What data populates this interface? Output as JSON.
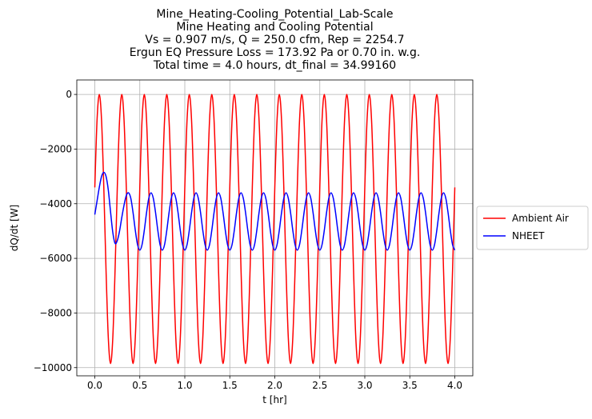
{
  "chart_data": {
    "type": "line",
    "title": [
      "Mine_Heating-Cooling_Potential_Lab-Scale",
      "Mine Heating and Cooling Potential",
      "Vs = 0.907 m/s, Q = 250.0 cfm, Rep = 2254.7",
      "Ergun EQ Pressure Loss = 173.92 Pa or 0.70 in. w.g.",
      "Total time = 4.0 hours, dt_final = 34.99160"
    ],
    "xlabel": "t [hr]",
    "ylabel": "dQ/dt [W]",
    "xlim": [
      -0.2,
      4.2
    ],
    "ylim": [
      -10300,
      530
    ],
    "xticks": [
      {
        "value": 0,
        "label": "0.0"
      },
      {
        "value": 0.5,
        "label": "0.5"
      },
      {
        "value": 1,
        "label": "1.0"
      },
      {
        "value": 1.5,
        "label": "1.5"
      },
      {
        "value": 2,
        "label": "2.0"
      },
      {
        "value": 2.5,
        "label": "2.5"
      },
      {
        "value": 3,
        "label": "3.0"
      },
      {
        "value": 3.5,
        "label": "3.5"
      },
      {
        "value": 4,
        "label": "4.0"
      }
    ],
    "yticks": [
      {
        "value": -10000,
        "label": "−10000"
      },
      {
        "value": -8000,
        "label": "−8000"
      },
      {
        "value": -6000,
        "label": "−6000"
      },
      {
        "value": -4000,
        "label": "−4000"
      },
      {
        "value": -2000,
        "label": "−2000"
      },
      0
    ],
    "grid": true,
    "legend": "outside right",
    "x": [
      0,
      0.025,
      0.05,
      0.075,
      0.1,
      0.125,
      0.15,
      0.175,
      0.2,
      0.225,
      0.25,
      0.275,
      0.3,
      0.325,
      0.35,
      0.375,
      0.4,
      0.425,
      0.45,
      0.475,
      0.5,
      0.525,
      0.55,
      0.575,
      0.6,
      0.625,
      0.65,
      0.675,
      0.7,
      0.725,
      0.75,
      0.775,
      0.8,
      0.825,
      0.85,
      0.875,
      0.9,
      0.925,
      0.95,
      0.975,
      1,
      1.025,
      1.05,
      1.075,
      1.1,
      1.125,
      1.15,
      1.175,
      1.2,
      1.225,
      1.25,
      1.275,
      1.3,
      1.325,
      1.35,
      1.375,
      1.4,
      1.425,
      1.45,
      1.475,
      1.5,
      1.525,
      1.55,
      1.575,
      1.6,
      1.625,
      1.65,
      1.675,
      1.7,
      1.725,
      1.75,
      1.775,
      1.8,
      1.825,
      1.85,
      1.875,
      1.9,
      1.925,
      1.95,
      1.975,
      2,
      2.025,
      2.05,
      2.075,
      2.1,
      2.125,
      2.15,
      2.175,
      2.2,
      2.225,
      2.25,
      2.275,
      2.3,
      2.325,
      2.35,
      2.375,
      2.4,
      2.425,
      2.45,
      2.475,
      2.5,
      2.525,
      2.55,
      2.575,
      2.6,
      2.625,
      2.65,
      2.675,
      2.7,
      2.725,
      2.75,
      2.775,
      2.8,
      2.825,
      2.85,
      2.875,
      2.9,
      2.925,
      2.95,
      2.975,
      3,
      3.025,
      3.05,
      3.075,
      3.1,
      3.125,
      3.15,
      3.175,
      3.2,
      3.225,
      3.25,
      3.275,
      3.3,
      3.325,
      3.35,
      3.375,
      3.4,
      3.425,
      3.45,
      3.475,
      3.5,
      3.525,
      3.55,
      3.575,
      3.6,
      3.625,
      3.65,
      3.675,
      3.7,
      3.725,
      3.75,
      3.775,
      3.8,
      3.825,
      3.85,
      3.875,
      3.9,
      3.925,
      3.95,
      3.975,
      4
    ],
    "series": [
      {
        "name": "Ambient Air",
        "color": "#ff0000",
        "values": [
          -3403,
          -940,
          0,
          -940,
          -3403,
          -6447,
          -8909,
          -9850,
          -8909,
          -6447,
          -3403,
          -940,
          0,
          -940,
          -3403,
          -6447,
          -8909,
          -9850,
          -8909,
          -6447,
          -3403,
          -940,
          0,
          -940,
          -3403,
          -6447,
          -8909,
          -9850,
          -8909,
          -6447,
          -3403,
          -940,
          0,
          -940,
          -3403,
          -6447,
          -8909,
          -9850,
          -8909,
          -6447,
          -3403,
          -940,
          0,
          -940,
          -3403,
          -6447,
          -8909,
          -9850,
          -8909,
          -6447,
          -3403,
          -940,
          0,
          -940,
          -3403,
          -6447,
          -8909,
          -9850,
          -8909,
          -6447,
          -3403,
          -940,
          0,
          -940,
          -3403,
          -6447,
          -8909,
          -9850,
          -8909,
          -6447,
          -3403,
          -940,
          0,
          -940,
          -3403,
          -6447,
          -8909,
          -9850,
          -8909,
          -6447,
          -3403,
          -940,
          0,
          -940,
          -3403,
          -6447,
          -8909,
          -9850,
          -8909,
          -6447,
          -3403,
          -940,
          0,
          -940,
          -3403,
          -6447,
          -8909,
          -9850,
          -8909,
          -6447,
          -3403,
          -940,
          0,
          -940,
          -3403,
          -6447,
          -8909,
          -9850,
          -8909,
          -6447,
          -3403,
          -940,
          0,
          -940,
          -3403,
          -6447,
          -8909,
          -9850,
          -8909,
          -6447,
          -3403,
          -940,
          0,
          -940,
          -3403,
          -6447,
          -8909,
          -9850,
          -8909,
          -6447,
          -3403,
          -940,
          0,
          -940,
          -3403,
          -6447,
          -8909,
          -9850,
          -8909,
          -6447,
          -3403,
          -940,
          0,
          -940,
          -3403,
          -6447,
          -8909,
          -9850,
          -8909,
          -6447,
          -3403,
          -940,
          0,
          -940,
          -3403,
          -6447,
          -8909,
          -9850,
          -8909,
          -6447,
          -3403
        ]
      },
      {
        "name": "NHEET",
        "color": "#0000ff",
        "values": [
          -4400,
          -3900,
          -3400,
          -3000,
          -2850,
          -3000,
          -3500,
          -4300,
          -5050,
          -5450,
          -5350,
          -5000,
          -4500,
          -4050,
          -3700,
          -3600,
          -3801,
          -4326,
          -4974,
          -5499,
          -5700,
          -5499,
          -4974,
          -4326,
          -3801,
          -3600,
          -3801,
          -4326,
          -4974,
          -5499,
          -5700,
          -5499,
          -4974,
          -4326,
          -3801,
          -3600,
          -3801,
          -4326,
          -4974,
          -5499,
          -5700,
          -5499,
          -4974,
          -4326,
          -3801,
          -3600,
          -3801,
          -4326,
          -4974,
          -5499,
          -5700,
          -5499,
          -4974,
          -4326,
          -3801,
          -3600,
          -3801,
          -4326,
          -4974,
          -5499,
          -5700,
          -5499,
          -4974,
          -4326,
          -3801,
          -3600,
          -3801,
          -4326,
          -4974,
          -5499,
          -5700,
          -5499,
          -4974,
          -4326,
          -3801,
          -3600,
          -3801,
          -4326,
          -4974,
          -5499,
          -5700,
          -5499,
          -4974,
          -4326,
          -3801,
          -3600,
          -3801,
          -4326,
          -4974,
          -5499,
          -5700,
          -5499,
          -4974,
          -4326,
          -3801,
          -3600,
          -3801,
          -4326,
          -4974,
          -5499,
          -5700,
          -5499,
          -4974,
          -4326,
          -3801,
          -3600,
          -3801,
          -4326,
          -4974,
          -5499,
          -5700,
          -5499,
          -4974,
          -4326,
          -3801,
          -3600,
          -3801,
          -4326,
          -4974,
          -5499,
          -5700,
          -5499,
          -4974,
          -4326,
          -3801,
          -3600,
          -3801,
          -4326,
          -4974,
          -5499,
          -5700,
          -5499,
          -4974,
          -4326,
          -3801,
          -3600,
          -3801,
          -4326,
          -4974,
          -5499,
          -5700,
          -5499,
          -4974,
          -4326,
          -3801,
          -3600,
          -3801,
          -4326,
          -4974,
          -5499,
          -5700,
          -5499,
          -4974,
          -4326,
          -3801,
          -3600,
          -3801,
          -4326,
          -4974,
          -5499,
          -5700
        ]
      }
    ]
  }
}
